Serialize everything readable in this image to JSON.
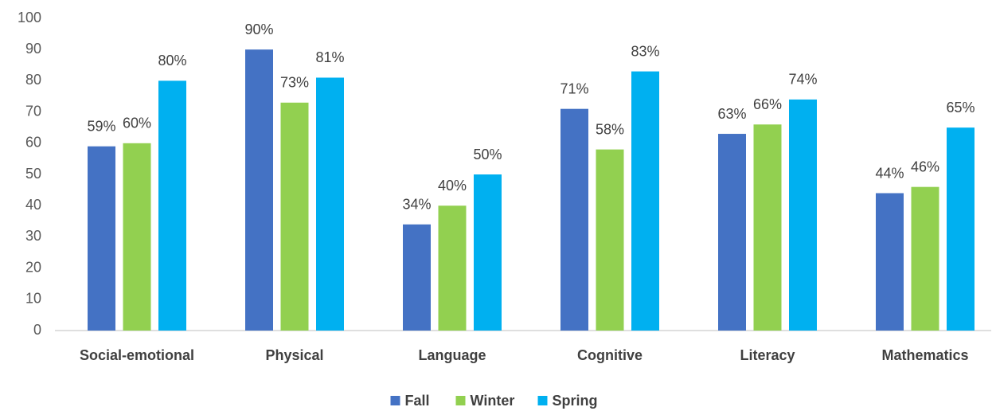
{
  "chart_data": {
    "type": "bar",
    "categories": [
      "Social-emotional",
      "Physical",
      "Language",
      "Cognitive",
      "Literacy",
      "Mathematics"
    ],
    "series": [
      {
        "name": "Fall",
        "color": "#4472c4",
        "values": [
          59,
          90,
          34,
          71,
          63,
          44
        ],
        "value_labels": [
          "59%",
          "90%",
          "34%",
          "71%",
          "63%",
          "44%"
        ]
      },
      {
        "name": "Winter",
        "color": "#92d050",
        "values": [
          60,
          73,
          40,
          58,
          66,
          46
        ],
        "value_labels": [
          "60%",
          "73%",
          "40%",
          "58%",
          "66%",
          "46%"
        ]
      },
      {
        "name": "Spring",
        "color": "#00b0f0",
        "values": [
          80,
          81,
          50,
          83,
          74,
          65
        ],
        "value_labels": [
          "80%",
          "81%",
          "50%",
          "83%",
          "74%",
          "65%"
        ]
      }
    ],
    "ylim": [
      0,
      100
    ],
    "yticks": [
      0,
      10,
      20,
      30,
      40,
      50,
      60,
      70,
      80,
      90,
      100
    ],
    "grid": false,
    "legend": "bottom"
  }
}
